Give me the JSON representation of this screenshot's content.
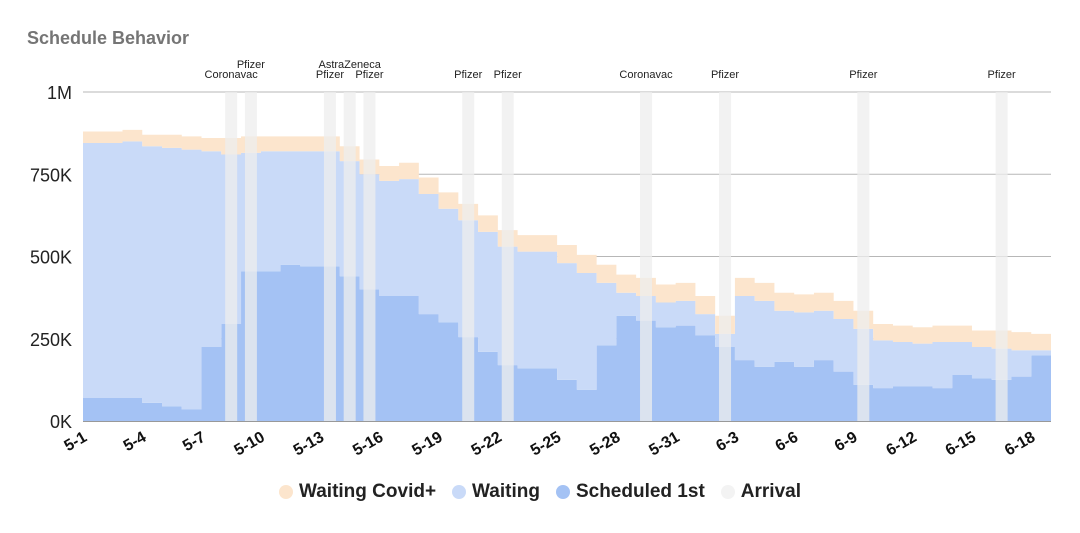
{
  "chart_data": {
    "type": "area",
    "title": "Schedule Behavior",
    "xlabel": "",
    "ylabel": "",
    "ylim": [
      0,
      1000000
    ],
    "yticks": [
      {
        "value": 0,
        "label": "0K"
      },
      {
        "value": 250000,
        "label": "250K"
      },
      {
        "value": 500000,
        "label": "500K"
      },
      {
        "value": 750000,
        "label": "750K"
      },
      {
        "value": 1000000,
        "label": "1M"
      }
    ],
    "categories": [
      "5-1",
      "5-2",
      "5-3",
      "5-4",
      "5-5",
      "5-6",
      "5-7",
      "5-8",
      "5-9",
      "5-10",
      "5-11",
      "5-12",
      "5-13",
      "5-14",
      "5-15",
      "5-16",
      "5-17",
      "5-18",
      "5-19",
      "5-20",
      "5-21",
      "5-22",
      "5-23",
      "5-24",
      "5-25",
      "5-26",
      "5-27",
      "5-28",
      "5-29",
      "5-30",
      "5-31",
      "6-1",
      "6-2",
      "6-3",
      "6-4",
      "6-5",
      "6-6",
      "6-7",
      "6-8",
      "6-9",
      "6-10",
      "6-11",
      "6-12",
      "6-13",
      "6-14",
      "6-15",
      "6-16",
      "6-17",
      "6-18"
    ],
    "xtick_labels": [
      "5-1",
      "5-4",
      "5-7",
      "5-10",
      "5-13",
      "5-16",
      "5-19",
      "5-22",
      "5-25",
      "5-28",
      "5-31",
      "6-3",
      "6-6",
      "6-9",
      "6-12",
      "6-15",
      "6-18"
    ],
    "series": [
      {
        "name": "Scheduled 1st",
        "color": "#a4c2f4",
        "values": [
          70000,
          70000,
          70000,
          55000,
          45000,
          35000,
          225000,
          295000,
          455000,
          455000,
          475000,
          470000,
          470000,
          440000,
          400000,
          380000,
          380000,
          325000,
          300000,
          255000,
          210000,
          170000,
          160000,
          160000,
          125000,
          95000,
          230000,
          320000,
          305000,
          285000,
          290000,
          260000,
          225000,
          185000,
          165000,
          180000,
          165000,
          185000,
          150000,
          110000,
          100000,
          105000,
          105000,
          100000,
          140000,
          130000,
          125000,
          135000,
          200000
        ]
      },
      {
        "name": "Waiting",
        "color": "#c9daf8",
        "values": [
          775000,
          775000,
          780000,
          780000,
          785000,
          790000,
          595000,
          515000,
          360000,
          365000,
          345000,
          350000,
          350000,
          350000,
          350000,
          350000,
          355000,
          365000,
          345000,
          355000,
          365000,
          360000,
          355000,
          355000,
          355000,
          355000,
          190000,
          70000,
          75000,
          75000,
          75000,
          65000,
          40000,
          195000,
          200000,
          155000,
          165000,
          150000,
          160000,
          170000,
          145000,
          135000,
          130000,
          140000,
          100000,
          95000,
          95000,
          80000,
          15000
        ]
      },
      {
        "name": "Waiting Covid+",
        "color": "#fce5cd",
        "values": [
          35000,
          35000,
          35000,
          35000,
          40000,
          40000,
          40000,
          50000,
          50000,
          45000,
          45000,
          45000,
          45000,
          45000,
          45000,
          45000,
          50000,
          50000,
          50000,
          50000,
          50000,
          50000,
          50000,
          50000,
          55000,
          55000,
          55000,
          55000,
          55000,
          55000,
          55000,
          55000,
          55000,
          55000,
          55000,
          55000,
          55000,
          55000,
          55000,
          55000,
          50000,
          50000,
          50000,
          50000,
          50000,
          50000,
          55000,
          55000,
          50000
        ]
      }
    ],
    "arrival": {
      "name": "Arrival",
      "color": "#f3f3f3",
      "events": [
        {
          "day": "5-8",
          "label": "Coronavac"
        },
        {
          "day": "5-9",
          "label": "Pfizer"
        },
        {
          "day": "5-13",
          "label": "Pfizer"
        },
        {
          "day": "5-14",
          "label": "AstraZeneca"
        },
        {
          "day": "5-15",
          "label": "Pfizer"
        },
        {
          "day": "5-20",
          "label": "Pfizer"
        },
        {
          "day": "5-22",
          "label": "Pfizer"
        },
        {
          "day": "5-29",
          "label": "Coronavac"
        },
        {
          "day": "6-2",
          "label": "Pfizer"
        },
        {
          "day": "6-9",
          "label": "Pfizer"
        },
        {
          "day": "6-16",
          "label": "Pfizer"
        }
      ]
    },
    "grid": true,
    "legend_position": "bottom"
  },
  "legend": [
    {
      "label": "Waiting Covid+",
      "color": "#fce5cd"
    },
    {
      "label": "Waiting",
      "color": "#c9daf8"
    },
    {
      "label": "Scheduled 1st",
      "color": "#a4c2f4"
    },
    {
      "label": "Arrival",
      "color": "#f3f3f3"
    }
  ]
}
